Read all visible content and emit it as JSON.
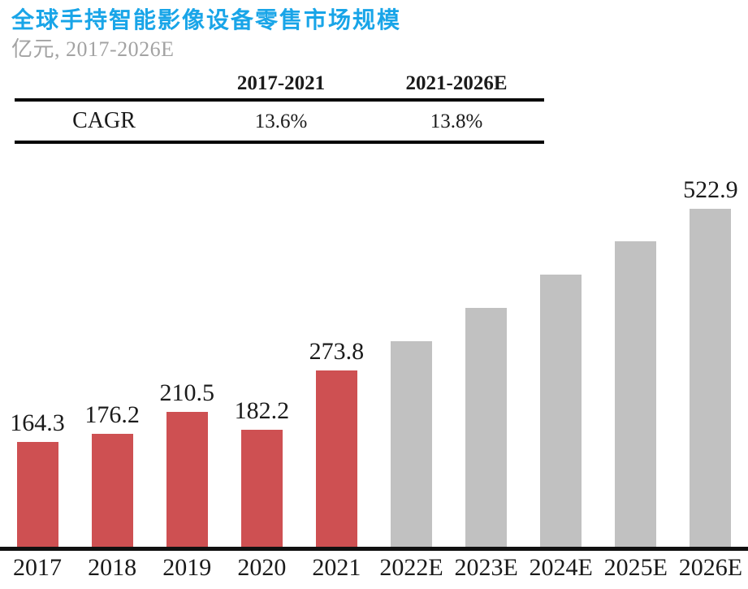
{
  "page": {
    "title": "全球手持智能影像设备零售市场规模",
    "subtitle": "亿元, 2017-2026E"
  },
  "colors": {
    "title_blue": "#19A5E8",
    "subtitle_gray": "#A3A3A3",
    "actual_bar_red": "#CE5052",
    "forecast_bar_gray": "#C1C1C1",
    "axis_black": "#111111"
  },
  "cagr_table": {
    "col_headers": [
      "2017-2021",
      "2021-2026E"
    ],
    "row_label": "CAGR",
    "row_values": [
      "13.6%",
      "13.8%"
    ]
  },
  "chart_data": {
    "type": "bar",
    "title": "全球手持智能影像设备零售市场规模",
    "ylabel": "亿元",
    "categories": [
      "2017",
      "2018",
      "2019",
      "2020",
      "2021",
      "2022E",
      "2023E",
      "2024E",
      "2025E",
      "2026E"
    ],
    "values": [
      164.3,
      176.2,
      210.5,
      182.2,
      273.8,
      319,
      370,
      421,
      473,
      522.9
    ],
    "data_labels": [
      "164.3",
      "176.2",
      "210.5",
      "182.2",
      "273.8",
      "",
      "",
      "",
      "",
      "522.9"
    ],
    "note": "Bars for 2022E-2025E carry no printed labels; their values are estimated from bar heights",
    "actual_count": 5,
    "actual_color": "#CE5052",
    "forecast_color": "#C1C1C1",
    "ylim": [
      0,
      560
    ],
    "grid": false,
    "legend": "none"
  }
}
